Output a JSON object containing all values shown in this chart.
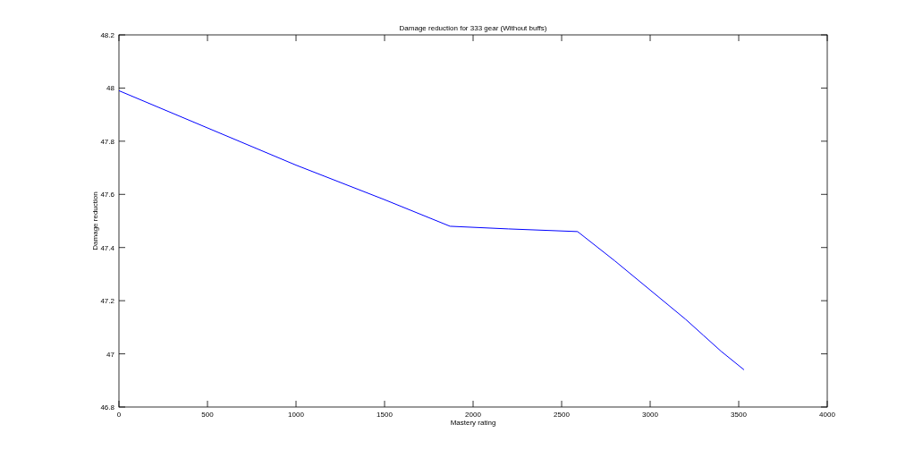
{
  "chart_data": {
    "type": "line",
    "title": "Damage reduction for 333 gear (Without buffs)",
    "xlabel": "Mastery rating",
    "ylabel": "Damage reduction",
    "series": [
      {
        "color": "#0000ff",
        "x": [
          0,
          500,
          1000,
          1500,
          1870,
          2200,
          2590,
          2800,
          3000,
          3200,
          3300,
          3400,
          3530
        ],
        "values": [
          47.99,
          47.85,
          47.71,
          47.58,
          47.48,
          47.47,
          47.46,
          47.35,
          47.24,
          47.13,
          47.07,
          47.01,
          46.94
        ]
      }
    ],
    "xlim": [
      0,
      4000
    ],
    "xticks": [
      0,
      500,
      1000,
      1500,
      2000,
      2500,
      3000,
      3500,
      4000
    ],
    "ylim": [
      46.8,
      48.2
    ],
    "yticks": [
      46.8,
      47,
      47.2,
      47.4,
      47.6,
      47.8,
      48,
      48.2
    ],
    "line_style": "solid"
  }
}
